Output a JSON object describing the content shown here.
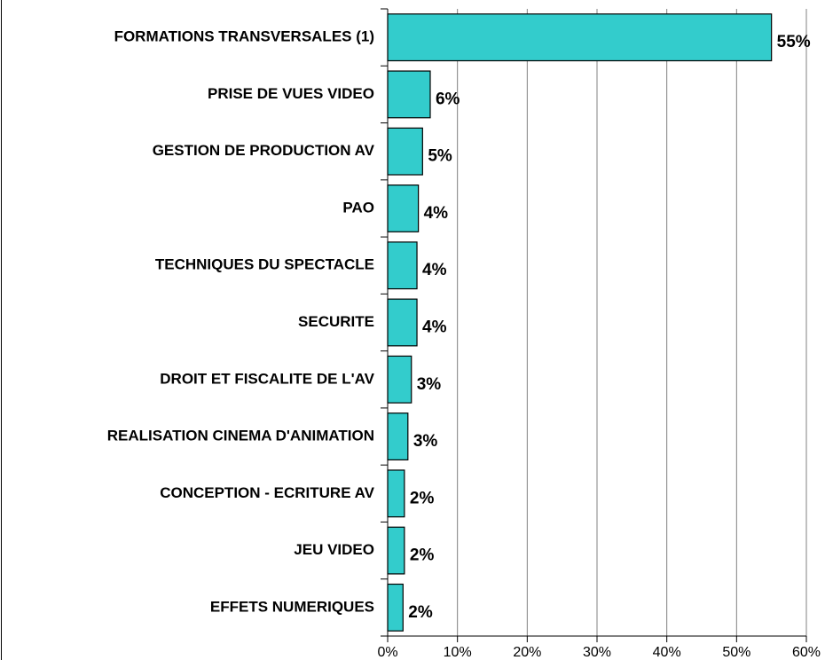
{
  "chart_data": {
    "type": "barh",
    "categories": [
      "FORMATIONS TRANSVERSALES (1)",
      "PRISE DE VUES VIDEO",
      "GESTION DE PRODUCTION AV",
      "PAO",
      "TECHNIQUES DU SPECTACLE",
      "SECURITE",
      "DROIT ET FISCALITE DE L'AV",
      "REALISATION CINEMA D'ANIMATION",
      "CONCEPTION - ECRITURE AV",
      "JEU VIDEO",
      "EFFETS NUMERIQUES"
    ],
    "values": [
      55,
      6.1,
      5,
      4.4,
      4.2,
      4.2,
      3.4,
      2.9,
      2.4,
      2.4,
      2.2
    ],
    "value_labels": [
      "55%",
      "6%",
      "5%",
      "4%",
      "4%",
      "4%",
      "3%",
      "3%",
      "2%",
      "2%",
      "2%"
    ],
    "color": "#33cccc",
    "xlim": [
      0,
      60
    ],
    "xticks": [
      {
        "value": 0,
        "label": "0%"
      },
      {
        "value": 10,
        "label": "10%"
      },
      {
        "value": 20,
        "label": "20%"
      },
      {
        "value": 30,
        "label": "30%"
      },
      {
        "value": 40,
        "label": "40%"
      },
      {
        "value": 50,
        "label": "50%"
      },
      {
        "value": 60,
        "label": "60%"
      }
    ],
    "grid": true
  }
}
